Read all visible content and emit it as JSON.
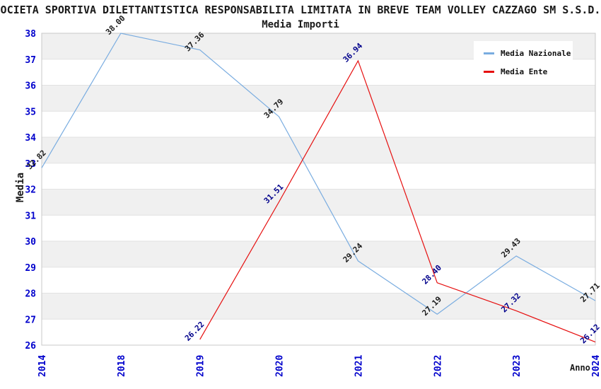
{
  "header": {
    "title": "OCIETA SPORTIVA DILETTANTISTICA RESPONSABILITA LIMITATA IN BREVE TEAM VOLLEY CAZZAGO SM S.S.D.",
    "subtitle": "Media Importi"
  },
  "chart_data": {
    "type": "line",
    "x_categories": [
      "2014",
      "2018",
      "2019",
      "2020",
      "2021",
      "2022",
      "2023",
      "2024"
    ],
    "series": [
      {
        "name": "Media Nazionale",
        "color": "#79ACE0",
        "label_color": "#1a1a1a",
        "values": [
          32.82,
          38.0,
          37.36,
          34.79,
          29.24,
          27.19,
          29.43,
          27.71
        ]
      },
      {
        "name": "Media Ente",
        "color": "#E60F0F",
        "label_color": "#00008B",
        "values": [
          null,
          null,
          26.22,
          31.51,
          36.94,
          28.4,
          27.32,
          26.12
        ]
      }
    ],
    "xlabel": "Anno",
    "ylabel": "Media",
    "ylim": [
      26,
      38
    ],
    "ytick_step": 1,
    "y_ticks": [
      "26",
      "27",
      "28",
      "29",
      "30",
      "31",
      "32",
      "33",
      "34",
      "35",
      "36",
      "37",
      "38"
    ],
    "point_label_decimals": 2,
    "grid": "alternating-horizontal-bands",
    "legend_position": "top-right"
  },
  "colors": {
    "tick_label": "#0000cc",
    "band_gray": "#f0f0f0",
    "band_white": "#ffffff",
    "grid_line": "#e2e2e2",
    "axis_border": "#c8c8c8",
    "legend_bg": "#ffffff",
    "text": "#1a1a1a"
  }
}
